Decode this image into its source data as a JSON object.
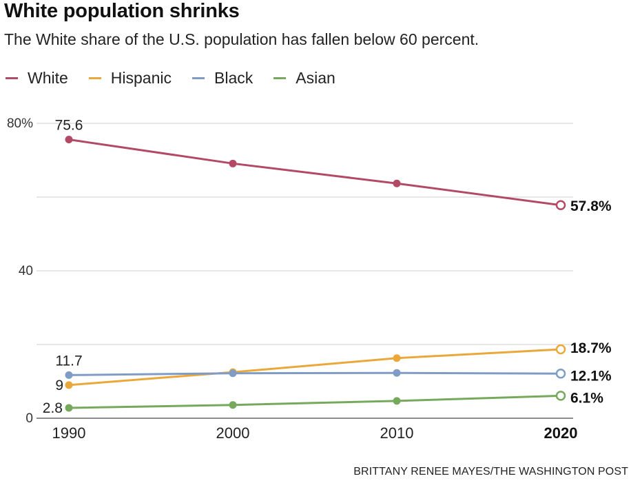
{
  "header": {
    "title": "White population shrinks",
    "subtitle": "The White share of the U.S. population has fallen below 60 percent."
  },
  "credit": "BRITTANY RENEE MAYES/THE WASHINGTON POST",
  "chart_data": {
    "type": "line",
    "title": "White population shrinks",
    "subtitle": "The White share of the U.S. population has fallen below 60 percent.",
    "xlabel": "",
    "ylabel": "",
    "x": [
      "1990",
      "2000",
      "2010",
      "2020"
    ],
    "ylim": [
      0,
      80
    ],
    "yticks": [
      0,
      20,
      40,
      60,
      80
    ],
    "ytick_labels": [
      "0",
      "",
      "40",
      "",
      "80%"
    ],
    "highlight_x": "2020",
    "grid": true,
    "legend_position": "top-left",
    "series": [
      {
        "name": "White",
        "color": "#b24a66",
        "values": [
          75.6,
          69.1,
          63.7,
          57.8
        ],
        "start_label": "75.6",
        "end_label": "57.8%"
      },
      {
        "name": "Hispanic",
        "color": "#eba83a",
        "values": [
          9,
          12.5,
          16.3,
          18.7
        ],
        "start_label": "9",
        "end_label": "18.7%"
      },
      {
        "name": "Black",
        "color": "#7f9cc6",
        "values": [
          11.7,
          12.2,
          12.3,
          12.1
        ],
        "start_label": "11.7",
        "end_label": "12.1%"
      },
      {
        "name": "Asian",
        "color": "#76a95c",
        "values": [
          2.8,
          3.6,
          4.7,
          6.1
        ],
        "start_label": "2.8",
        "end_label": "6.1%"
      }
    ]
  }
}
